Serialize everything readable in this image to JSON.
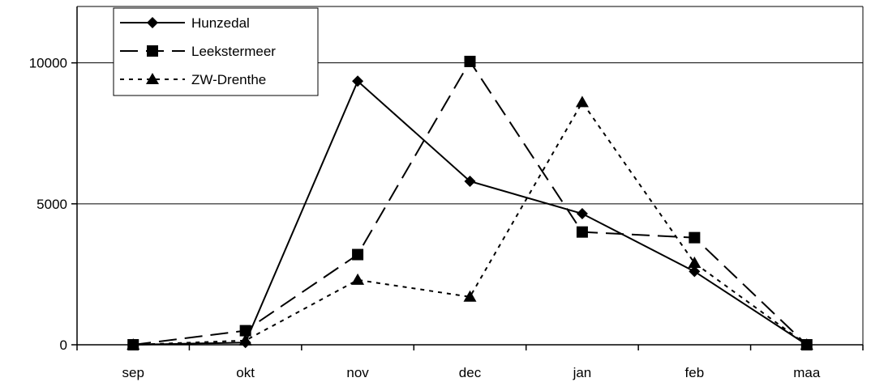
{
  "chart_data": {
    "type": "line",
    "categories": [
      "sep",
      "okt",
      "nov",
      "dec",
      "jan",
      "feb",
      "maa"
    ],
    "series": [
      {
        "name": "Hunzedal",
        "values": [
          0,
          80,
          9350,
          5800,
          4650,
          2600,
          0
        ],
        "marker": "diamond",
        "dash": "solid"
      },
      {
        "name": "Leekstermeer",
        "values": [
          0,
          500,
          3200,
          10050,
          4000,
          3800,
          0
        ],
        "marker": "square",
        "dash": "long-dash"
      },
      {
        "name": "ZW-Drenthe",
        "values": [
          0,
          150,
          2300,
          1700,
          8600,
          2900,
          0
        ],
        "marker": "triangle",
        "dash": "dotted"
      }
    ],
    "ylim": [
      0,
      12000
    ],
    "yticks": [
      0,
      5000,
      10000
    ],
    "ytick_labels": [
      "0",
      "5000",
      "10000"
    ],
    "grid": "horizontal",
    "legend": "top-left",
    "colors": {
      "line": "#000000",
      "grid": "#000000",
      "background": "#ffffff"
    }
  }
}
